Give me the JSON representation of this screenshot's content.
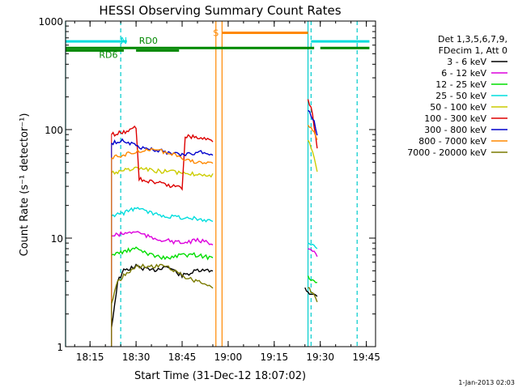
{
  "chart_data": {
    "type": "line",
    "title": "HESSI Observing Summary Count Rates",
    "xlabel": "Start Time (31-Dec-12 18:07:02)",
    "ylabel": "Count Rate (s⁻¹ detector⁻¹)",
    "y_scale": "log",
    "ylim": [
      1,
      1000
    ],
    "xlim": [
      "18:07:02",
      "19:48:00"
    ],
    "x_ticks": [
      "18:15",
      "18:30",
      "18:45",
      "19:00",
      "19:15",
      "19:30",
      "19:45"
    ],
    "y_ticks": [
      "1",
      "10",
      "100",
      "1000"
    ],
    "grid": false,
    "legend_position": "right",
    "legend_header": [
      "Det 1,3,5,6,7,9,",
      "FDecim 1, Att 0"
    ],
    "series": [
      {
        "name": "3 - 6 keV",
        "color": "#000000",
        "x": [
          "18:22",
          "18:24",
          "18:26",
          "18:30",
          "18:35",
          "18:40",
          "18:45",
          "18:50",
          "18:55",
          "19:25",
          "19:27",
          "19:29"
        ],
        "y": [
          1.5,
          4.0,
          5.0,
          5.5,
          5.0,
          5.5,
          4.5,
          5.0,
          5.0,
          3.5,
          3.0,
          3.0
        ]
      },
      {
        "name": "6 - 12 keV",
        "color": "#dd00dd",
        "x": [
          "18:22",
          "18:26",
          "18:30",
          "18:35",
          "18:40",
          "18:45",
          "18:50",
          "18:55",
          "19:26",
          "19:28",
          "19:29"
        ],
        "y": [
          10.5,
          11.0,
          11.5,
          10.0,
          9.5,
          9.0,
          9.5,
          9.0,
          8.0,
          7.5,
          6.5
        ]
      },
      {
        "name": "12 - 25 keV",
        "color": "#00dd00",
        "x": [
          "18:22",
          "18:26",
          "18:30",
          "18:35",
          "18:40",
          "18:45",
          "18:50",
          "18:55",
          "19:26",
          "19:28",
          "19:29"
        ],
        "y": [
          7.0,
          7.5,
          8.0,
          7.0,
          6.5,
          7.0,
          7.0,
          6.5,
          4.5,
          4.0,
          4.0
        ]
      },
      {
        "name": "25 - 50 keV",
        "color": "#00dddd",
        "x": [
          "18:22",
          "18:26",
          "18:30",
          "18:35",
          "18:40",
          "18:45",
          "18:50",
          "18:55",
          "19:26",
          "19:28",
          "19:29"
        ],
        "y": [
          16.0,
          17.0,
          19.0,
          17.0,
          16.0,
          15.5,
          15.0,
          14.5,
          9.0,
          8.5,
          8.0
        ]
      },
      {
        "name": "50 - 100 keV",
        "color": "#cccc00",
        "x": [
          "18:22",
          "18:26",
          "18:30",
          "18:35",
          "18:40",
          "18:45",
          "18:50",
          "18:55",
          "19:26",
          "19:28",
          "19:29"
        ],
        "y": [
          40.0,
          42.0,
          44.0,
          42.0,
          41.0,
          40.0,
          39.0,
          38.0,
          80.0,
          55.0,
          40.0
        ]
      },
      {
        "name": "100 - 300 keV",
        "color": "#dd0000",
        "x": [
          "18:22",
          "18:26",
          "18:30",
          "18:31",
          "18:35",
          "18:40",
          "18:45",
          "18:46",
          "18:50",
          "18:55",
          "19:26",
          "19:27",
          "19:28",
          "19:29"
        ],
        "y": [
          90.0,
          95.0,
          105.0,
          35.0,
          33.0,
          31.0,
          29.0,
          88.0,
          85.0,
          80.0,
          190.0,
          160.0,
          110.0,
          70.0
        ]
      },
      {
        "name": "300 - 800 keV",
        "color": "#0000cc",
        "x": [
          "18:22",
          "18:26",
          "18:30",
          "18:35",
          "18:40",
          "18:45",
          "18:50",
          "18:55",
          "19:26",
          "19:28",
          "19:29"
        ],
        "y": [
          75.0,
          80.0,
          70.0,
          66.0,
          62.0,
          58.0,
          62.0,
          60.0,
          150.0,
          120.0,
          90.0
        ]
      },
      {
        "name": "800 - 7000 keV",
        "color": "#ff8800",
        "x": [
          "18:22",
          "18:26",
          "18:30",
          "18:35",
          "18:40",
          "18:45",
          "18:50",
          "18:55",
          "19:26",
          "19:28",
          "19:29"
        ],
        "y": [
          55.0,
          58.0,
          63.0,
          65.0,
          62.0,
          55.0,
          50.0,
          48.0,
          110.0,
          95.0,
          80.0
        ]
      },
      {
        "name": "7000 - 20000 keV",
        "color": "#7a7a00",
        "x": [
          "18:22",
          "18:24",
          "18:26",
          "18:30",
          "18:35",
          "18:40",
          "18:45",
          "18:50",
          "18:55",
          "19:26",
          "19:28",
          "19:29"
        ],
        "y": [
          2.5,
          4.0,
          4.5,
          5.5,
          5.5,
          5.5,
          4.5,
          4.0,
          3.5,
          3.5,
          3.0,
          2.5
        ]
      }
    ],
    "vertical_markers": [
      {
        "x": "18:07:02",
        "color": "#00cccc",
        "style": "solid"
      },
      {
        "x": "18:25",
        "color": "#00cccc",
        "style": "dashed"
      },
      {
        "x": "18:56",
        "color": "#ff8800",
        "style": "solid"
      },
      {
        "x": "18:58",
        "color": "#ff8800",
        "style": "solid"
      },
      {
        "x": "19:26",
        "color": "#00cccc",
        "style": "solid"
      },
      {
        "x": "19:27",
        "color": "#00cccc",
        "style": "dashed"
      },
      {
        "x": "19:42",
        "color": "#00cccc",
        "style": "dashed"
      }
    ],
    "annotation_bars": [
      {
        "label": "N",
        "color": "#00dddd",
        "y": 650,
        "segments": [
          [
            "18:07:02",
            "18:25"
          ],
          [
            "18:25",
            "18:27"
          ],
          [
            "19:27",
            "19:46"
          ]
        ]
      },
      {
        "label": "S",
        "color": "#ff8800",
        "y": 780,
        "segments": [
          [
            "18:58",
            "19:26"
          ]
        ]
      },
      {
        "label": "RD0",
        "color": "#008800",
        "y": 565,
        "segments": [
          [
            "18:07:02",
            "19:28"
          ],
          [
            "19:30",
            "19:46"
          ]
        ]
      },
      {
        "label": "RD6",
        "color": "#008800",
        "y": 535,
        "segments": [
          [
            "18:07:02",
            "18:26"
          ],
          [
            "18:30",
            "18:44"
          ]
        ]
      }
    ]
  },
  "footer": {
    "timestamp": "1-Jan-2013 02:03"
  }
}
